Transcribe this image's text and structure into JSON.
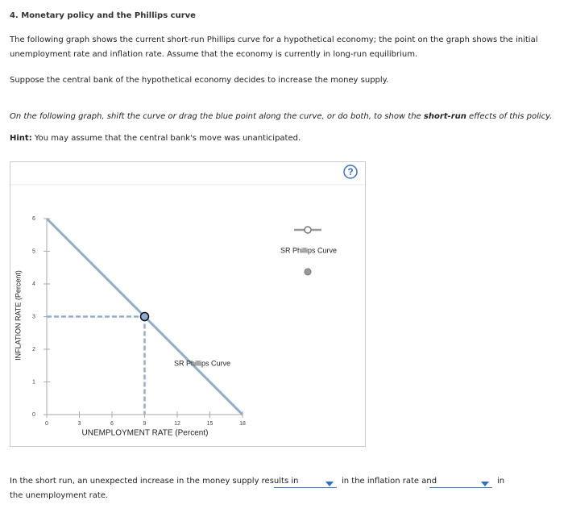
{
  "header": {
    "title": "4. Monetary policy and the Phillips curve"
  },
  "paragraphs": [
    "The following graph shows the current short-run Phillips curve for a hypothetical economy; the point on the graph shows the initial unemployment rate and inflation rate. Assume that the economy is currently in long-run equilibrium.",
    "Suppose the central bank of the hypothetical economy decides to increase the money supply."
  ],
  "instruction": [
    "On the following graph, shift the curve or drag the blue point along the curve, or do both, to show the ",
    "short-run",
    " effects of this policy."
  ],
  "hint": {
    "label": "Hint:",
    "text": "You may assume that the central bank's move was unanticipated."
  },
  "help": "?",
  "chart_data": {
    "type": "line",
    "xlabel": "UNEMPLOYMENT RATE (Percent)",
    "ylabel": "INFLATION RATE (Percent)",
    "series": [
      {
        "name": "SR Phillips Curve",
        "color": "#8eadcf",
        "x": [
          0,
          18
        ],
        "values": [
          6,
          0
        ]
      }
    ],
    "point": {
      "x": 9,
      "y": 3,
      "color": "#8eadcf"
    },
    "xlim": [
      0,
      18
    ],
    "xticks": [
      0,
      3,
      6,
      9,
      12,
      15,
      18
    ],
    "ylim": [
      0,
      6
    ],
    "yticks": [
      0,
      1,
      2,
      3,
      4,
      5,
      6
    ]
  },
  "question": [
    "In the short run, an unexpected increase in the money supply results in",
    "in the inflation rate and",
    "in the unemployment rate."
  ]
}
